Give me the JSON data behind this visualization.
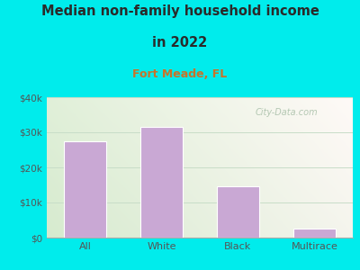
{
  "title_line1": "Median non-family household income",
  "title_line2": "in 2022",
  "subtitle": "Fort Meade, FL",
  "categories": [
    "All",
    "White",
    "Black",
    "Multirace"
  ],
  "values": [
    27500,
    31500,
    14500,
    2500
  ],
  "bar_color": "#c9a8d4",
  "bar_edgecolor": "#ffffff",
  "background_outer": "#00ecec",
  "title_color": "#2a2a2a",
  "subtitle_color": "#c8732a",
  "tick_label_color": "#555555",
  "ylabel_ticks": [
    "$0",
    "$10k",
    "$20k",
    "$30k",
    "$40k"
  ],
  "ytick_values": [
    0,
    10000,
    20000,
    30000,
    40000
  ],
  "ylim": [
    0,
    40000
  ],
  "watermark": "City-Data.com",
  "grid_color": "#c8ddc8"
}
